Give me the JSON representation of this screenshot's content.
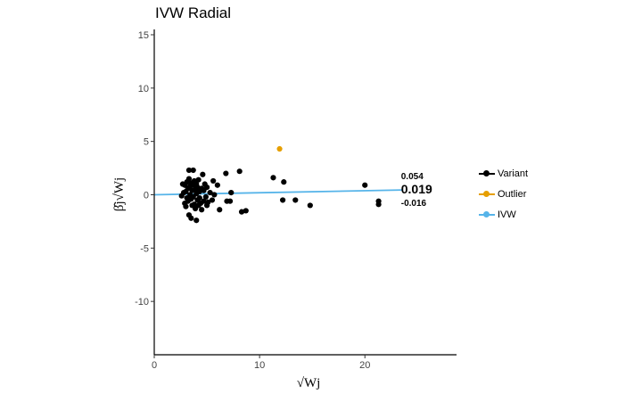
{
  "chart_data": {
    "type": "scatter",
    "title": "IVW Radial",
    "xlabel": "√Wj",
    "ylabel": "β̂j√Wj",
    "xlim": [
      0,
      28.7
    ],
    "ylim": [
      -15,
      15.5
    ],
    "xticks": [
      0,
      10,
      20
    ],
    "yticks": [
      -10,
      -5,
      0,
      5,
      10,
      15
    ],
    "grid": false,
    "legend_position": "right",
    "colors": {
      "variant": "#000000",
      "outlier": "#E69F00",
      "ivw": "#56B4E9"
    },
    "series": [
      {
        "name": "Variant",
        "points": [
          [
            2.6,
            -0.1
          ],
          [
            2.7,
            1.0
          ],
          [
            2.8,
            0.2
          ],
          [
            2.9,
            -0.8
          ],
          [
            2.9,
            0.9
          ],
          [
            3.0,
            -1.1
          ],
          [
            3.0,
            0.3
          ],
          [
            3.1,
            -0.3
          ],
          [
            3.1,
            1.2
          ],
          [
            3.2,
            0.6
          ],
          [
            3.2,
            -0.6
          ],
          [
            3.3,
            1.5
          ],
          [
            3.3,
            -1.9
          ],
          [
            3.3,
            2.3
          ],
          [
            3.4,
            0.0
          ],
          [
            3.4,
            0.8
          ],
          [
            3.5,
            -0.4
          ],
          [
            3.5,
            1.1
          ],
          [
            3.5,
            -2.2
          ],
          [
            3.6,
            0.4
          ],
          [
            3.6,
            -1.0
          ],
          [
            3.7,
            2.3
          ],
          [
            3.7,
            0.9
          ],
          [
            3.7,
            -0.2
          ],
          [
            3.8,
            1.3
          ],
          [
            3.8,
            -0.9
          ],
          [
            3.9,
            0.5
          ],
          [
            3.9,
            -1.3
          ],
          [
            4.0,
            -2.4
          ],
          [
            4.0,
            0.1
          ],
          [
            4.0,
            1.0
          ],
          [
            4.1,
            -0.5
          ],
          [
            4.1,
            0.7
          ],
          [
            4.2,
            -1.0
          ],
          [
            4.2,
            1.4
          ],
          [
            4.3,
            0.3
          ],
          [
            4.3,
            -0.3
          ],
          [
            4.4,
            -0.8
          ],
          [
            4.5,
            0.6
          ],
          [
            4.5,
            -1.4
          ],
          [
            4.6,
            1.9
          ],
          [
            4.7,
            0.4
          ],
          [
            4.7,
            -0.6
          ],
          [
            4.8,
            1.0
          ],
          [
            4.9,
            -0.2
          ],
          [
            5.0,
            0.7
          ],
          [
            5.0,
            -1.0
          ],
          [
            5.1,
            -0.7
          ],
          [
            5.3,
            0.2
          ],
          [
            5.5,
            -0.5
          ],
          [
            5.6,
            1.3
          ],
          [
            5.7,
            0.0
          ],
          [
            6.0,
            0.9
          ],
          [
            6.2,
            -1.4
          ],
          [
            6.8,
            2.0
          ],
          [
            6.9,
            -0.6
          ],
          [
            7.2,
            -0.6
          ],
          [
            7.3,
            0.2
          ],
          [
            8.1,
            2.2
          ],
          [
            8.3,
            -1.6
          ],
          [
            8.7,
            -1.5
          ],
          [
            11.3,
            1.6
          ],
          [
            12.2,
            -0.5
          ],
          [
            12.3,
            1.2
          ],
          [
            13.4,
            -0.5
          ],
          [
            14.8,
            -1.0
          ],
          [
            20.0,
            0.9
          ],
          [
            21.3,
            -0.6
          ],
          [
            21.3,
            -0.9
          ]
        ]
      },
      {
        "name": "Outlier",
        "points": [
          [
            11.9,
            4.3
          ]
        ]
      },
      {
        "name": "IVW",
        "line": {
          "intercept": 0,
          "slope": 0.019
        }
      }
    ],
    "annotations": [
      "0.054",
      "0.019",
      "-0.016"
    ]
  }
}
